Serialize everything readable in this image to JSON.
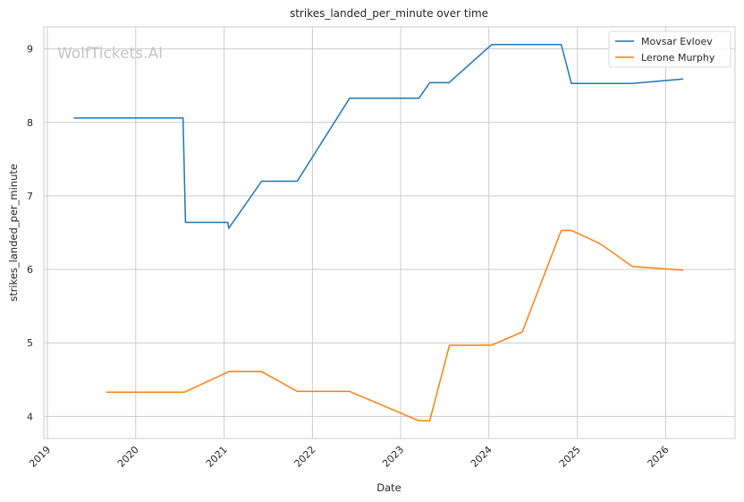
{
  "chart_data": {
    "type": "line",
    "title": "strikes_landed_per_minute over time",
    "xlabel": "Date",
    "ylabel": "strikes_landed_per_minute",
    "watermark": "WolfTickets.AI",
    "x_ticks": [
      "2019",
      "2020",
      "2021",
      "2022",
      "2023",
      "2024",
      "2025",
      "2026"
    ],
    "y_ticks": [
      "4",
      "5",
      "6",
      "7",
      "8",
      "9"
    ],
    "xlim": [
      "2018-12-17",
      "2026-10-15"
    ],
    "ylim": [
      3.7,
      9.3
    ],
    "grid": true,
    "legend_position": "top-right",
    "series": [
      {
        "name": "Movsar Evloev",
        "color": "#1f77b4",
        "points": [
          [
            "2019-04-20",
            8.06
          ],
          [
            "2020-07-15",
            8.06
          ],
          [
            "2020-07-25",
            6.64
          ],
          [
            "2021-01-16",
            6.64
          ],
          [
            "2021-01-20",
            6.56
          ],
          [
            "2021-06-05",
            7.2
          ],
          [
            "2021-10-30",
            7.2
          ],
          [
            "2022-06-04",
            8.33
          ],
          [
            "2023-03-18",
            8.33
          ],
          [
            "2023-05-01",
            8.54
          ],
          [
            "2023-07-20",
            8.54
          ],
          [
            "2024-01-13",
            9.06
          ],
          [
            "2024-10-26",
            9.06
          ],
          [
            "2024-12-07",
            8.53
          ],
          [
            "2025-08-16",
            8.53
          ],
          [
            "2026-03-15",
            8.59
          ]
        ]
      },
      {
        "name": "Lerone Murphy",
        "color": "#ff7f0e",
        "points": [
          [
            "2019-08-31",
            4.33
          ],
          [
            "2020-07-20",
            4.33
          ],
          [
            "2021-01-20",
            4.61
          ],
          [
            "2021-06-05",
            4.61
          ],
          [
            "2021-10-30",
            4.34
          ],
          [
            "2022-06-04",
            4.34
          ],
          [
            "2023-03-18",
            3.94
          ],
          [
            "2023-05-01",
            3.94
          ],
          [
            "2023-07-22",
            4.97
          ],
          [
            "2024-01-13",
            4.97
          ],
          [
            "2024-05-18",
            5.15
          ],
          [
            "2024-10-26",
            6.53
          ],
          [
            "2024-12-07",
            6.53
          ],
          [
            "2025-04-05",
            6.35
          ],
          [
            "2025-08-16",
            6.04
          ],
          [
            "2026-03-15",
            5.99
          ]
        ]
      }
    ]
  }
}
